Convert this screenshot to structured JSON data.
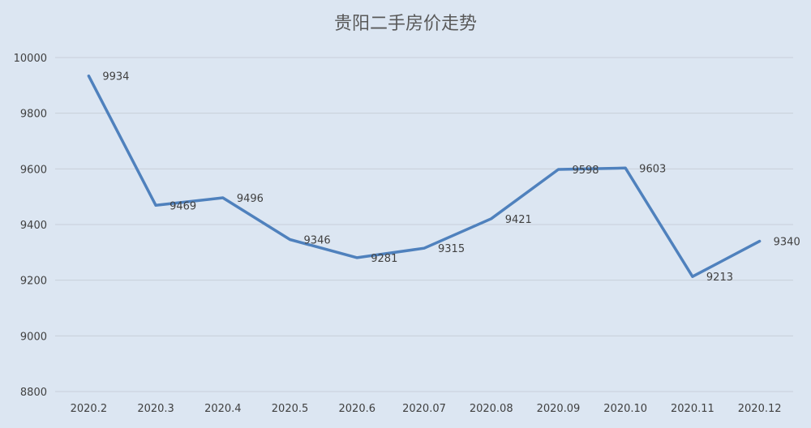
{
  "chart_data": {
    "type": "line",
    "title": "贵阳二手房价走势",
    "categories": [
      "2020.2",
      "2020.3",
      "2020.4",
      "2020.5",
      "2020.6",
      "2020.07",
      "2020.08",
      "2020.09",
      "2020.10",
      "2020.11",
      "2020.12"
    ],
    "series": [
      {
        "values": [
          9934,
          9469,
          9496,
          9346,
          9281,
          9315,
          9421,
          9598,
          9603,
          9213,
          9340
        ]
      }
    ],
    "yticks": [
      "8800",
      "9000",
      "9200",
      "9400",
      "9600",
      "9800",
      "10000"
    ],
    "ylim": [
      8800,
      10000
    ],
    "grid": true,
    "legend": "none",
    "data_labels": true,
    "line_color": "#4f81bd",
    "background_color": "#dce6f2"
  }
}
